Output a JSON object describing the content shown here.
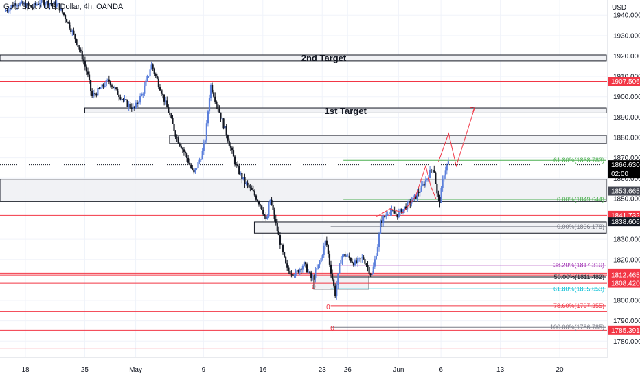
{
  "header": {
    "title": "Gold Spot / U.S. Dollar, 4h, OANDA",
    "currency": "USD"
  },
  "chart_data": {
    "type": "candlestick",
    "title": "Gold Spot / U.S. Dollar, 4h, OANDA",
    "ylabel": "USD",
    "ylim": [
      1772,
      1947.5
    ],
    "y_ticks": [
      1940,
      1930,
      1920,
      1910,
      1900,
      1890,
      1880,
      1870,
      1860,
      1850,
      1840,
      1830,
      1820,
      1810,
      1800,
      1790,
      1780
    ],
    "y_tick_labels": [
      "1940.000",
      "1930.000",
      "1920.000",
      "1910.000",
      "1900.000",
      "1890.000",
      "1880.000",
      "1870.000",
      "1860.000",
      "1850.000",
      "1840.000",
      "1830.000",
      "1820.000",
      "1810.000",
      "1800.000",
      "1790.000",
      "1780.000"
    ],
    "x_ticks": [
      {
        "label": "18",
        "day": 18
      },
      {
        "label": "25",
        "day": 25
      },
      {
        "label": "May",
        "day": 31
      },
      {
        "label": "9",
        "day": 39
      },
      {
        "label": "16",
        "day": 46
      },
      {
        "label": "23",
        "day": 53
      },
      {
        "label": "26",
        "day": 56
      },
      {
        "label": "Jun",
        "day": 62
      },
      {
        "label": "6",
        "day": 67
      },
      {
        "label": "13",
        "day": 74
      },
      {
        "label": "20",
        "day": 81
      }
    ],
    "ohlc_path": [
      [
        15.7,
        1942
      ],
      [
        17,
        1946
      ],
      [
        19,
        1944
      ],
      [
        20,
        1947
      ],
      [
        22,
        1945
      ],
      [
        23,
        1938
      ],
      [
        24,
        1929
      ],
      [
        25,
        1918
      ],
      [
        25.6,
        1909
      ],
      [
        26,
        1900
      ],
      [
        27,
        1904
      ],
      [
        28,
        1908
      ],
      [
        29,
        1902
      ],
      [
        30,
        1897
      ],
      [
        31,
        1894
      ],
      [
        32,
        1902
      ],
      [
        32.7,
        1911
      ],
      [
        33,
        1916
      ],
      [
        34,
        1905
      ],
      [
        35,
        1893
      ],
      [
        36,
        1880
      ],
      [
        37,
        1872
      ],
      [
        38,
        1862
      ],
      [
        39,
        1872
      ],
      [
        39.4,
        1880
      ],
      [
        40,
        1906
      ],
      [
        41,
        1893
      ],
      [
        42,
        1880
      ],
      [
        43,
        1866
      ],
      [
        44,
        1858
      ],
      [
        45,
        1853
      ],
      [
        46,
        1846
      ],
      [
        46.6,
        1838
      ],
      [
        47,
        1850
      ],
      [
        48,
        1832
      ],
      [
        49,
        1815
      ],
      [
        50,
        1813
      ],
      [
        51,
        1818
      ],
      [
        52,
        1810
      ],
      [
        53,
        1820
      ],
      [
        53.6,
        1830
      ],
      [
        54,
        1819
      ],
      [
        54.7,
        1803
      ],
      [
        55.4,
        1822
      ],
      [
        56,
        1822
      ],
      [
        57,
        1818
      ],
      [
        58,
        1821
      ],
      [
        59,
        1812
      ],
      [
        59.8,
        1829
      ],
      [
        60,
        1838
      ],
      [
        61,
        1844
      ],
      [
        62,
        1842
      ],
      [
        63,
        1846
      ],
      [
        64,
        1850
      ],
      [
        65,
        1856
      ],
      [
        66,
        1864
      ],
      [
        66.3,
        1866
      ],
      [
        66.7,
        1852
      ],
      [
        67,
        1848
      ],
      [
        67.5,
        1862
      ],
      [
        68,
        1868
      ]
    ],
    "horizontal_lines": [
      {
        "price": 1907.506,
        "color": "#f23645",
        "label": "1907.506"
      },
      {
        "price": 1841.732,
        "color": "#f23645",
        "label": "1841.732"
      },
      {
        "price": 1813.382,
        "color": "#f23645",
        "label": "1813.382"
      },
      {
        "price": 1812.465,
        "color": "#f23645",
        "label": "1812.465"
      },
      {
        "price": 1808.42,
        "color": "#f23645",
        "label": "1808.420"
      },
      {
        "price": 1785.391,
        "color": "#f23645",
        "label": "1785.391"
      },
      {
        "price": 1794.5,
        "color": "#f23645",
        "label": ""
      },
      {
        "price": 1776.5,
        "color": "#f23645",
        "label": ""
      }
    ],
    "zones": [
      {
        "name": "2nd Target",
        "low": 1917.5,
        "high": 1920.5,
        "from_day": -1,
        "label": "2nd Target"
      },
      {
        "name": "1st Target",
        "low": 1892,
        "high": 1894.5,
        "from_day": 25,
        "label": "1st Target"
      },
      {
        "name": "resistance-zone",
        "low": 1877,
        "high": 1881,
        "from_day": 35,
        "label": ""
      },
      {
        "name": "support-zone",
        "low": 1848.5,
        "high": 1859.5,
        "from_day": -1,
        "label": ""
      },
      {
        "name": "demand-zone",
        "low": 1833,
        "high": 1838.5,
        "from_day": 45,
        "label": ""
      },
      {
        "name": "base-zone",
        "low": 1805.5,
        "high": 1812,
        "from_day": 52,
        "to_day": 58.5,
        "label": ""
      }
    ],
    "fibonacci": [
      {
        "level": "0.00%",
        "price": 1836.178,
        "label": "0.00%(1836.178)",
        "color": "#787b86"
      },
      {
        "level": "38.20%",
        "price": 1817.31,
        "label": "38.20%(1817.310)",
        "color": "#9c27b0"
      },
      {
        "level": "50.00%",
        "price": 1811.482,
        "label": "50.00%(1811.482)",
        "color": "#131722"
      },
      {
        "level": "61.80%",
        "price": 1805.653,
        "label": "61.80%(1805.653)",
        "color": "#00bcd4"
      },
      {
        "level": "78.60%",
        "price": 1797.355,
        "label": "78.60%(1797.355)",
        "color": "#f23645"
      },
      {
        "level": "100.00%",
        "price": 1786.785,
        "label": "100.00%(1786.785)",
        "color": "#787b86"
      },
      {
        "level": "61.80%",
        "price": 1868.783,
        "label": "61.80%(1868.783)",
        "color": "#4caf50"
      },
      {
        "level": "0.00%",
        "price": 1849.644,
        "label": "0.00%(1849.644)",
        "color": "#4caf50"
      }
    ],
    "current_price": {
      "price": 1866.63,
      "label": "1866.630",
      "countdown": "02:00"
    },
    "price_tags": [
      {
        "price": 1853.665,
        "label": "1853.665",
        "color": "#434651"
      },
      {
        "price": 1838.606,
        "label": "1838.606",
        "color": "#131722"
      }
    ],
    "projection_path": [
      [
        66.7,
        1868
      ],
      [
        67.9,
        1882
      ],
      [
        68.8,
        1866
      ],
      [
        71,
        1895
      ]
    ],
    "markers": [
      {
        "day": 52,
        "price": 1807,
        "label": "0"
      },
      {
        "day": 53.7,
        "price": 1797,
        "label": "0"
      },
      {
        "day": 54.2,
        "price": 1786.5,
        "label": "0"
      }
    ]
  }
}
